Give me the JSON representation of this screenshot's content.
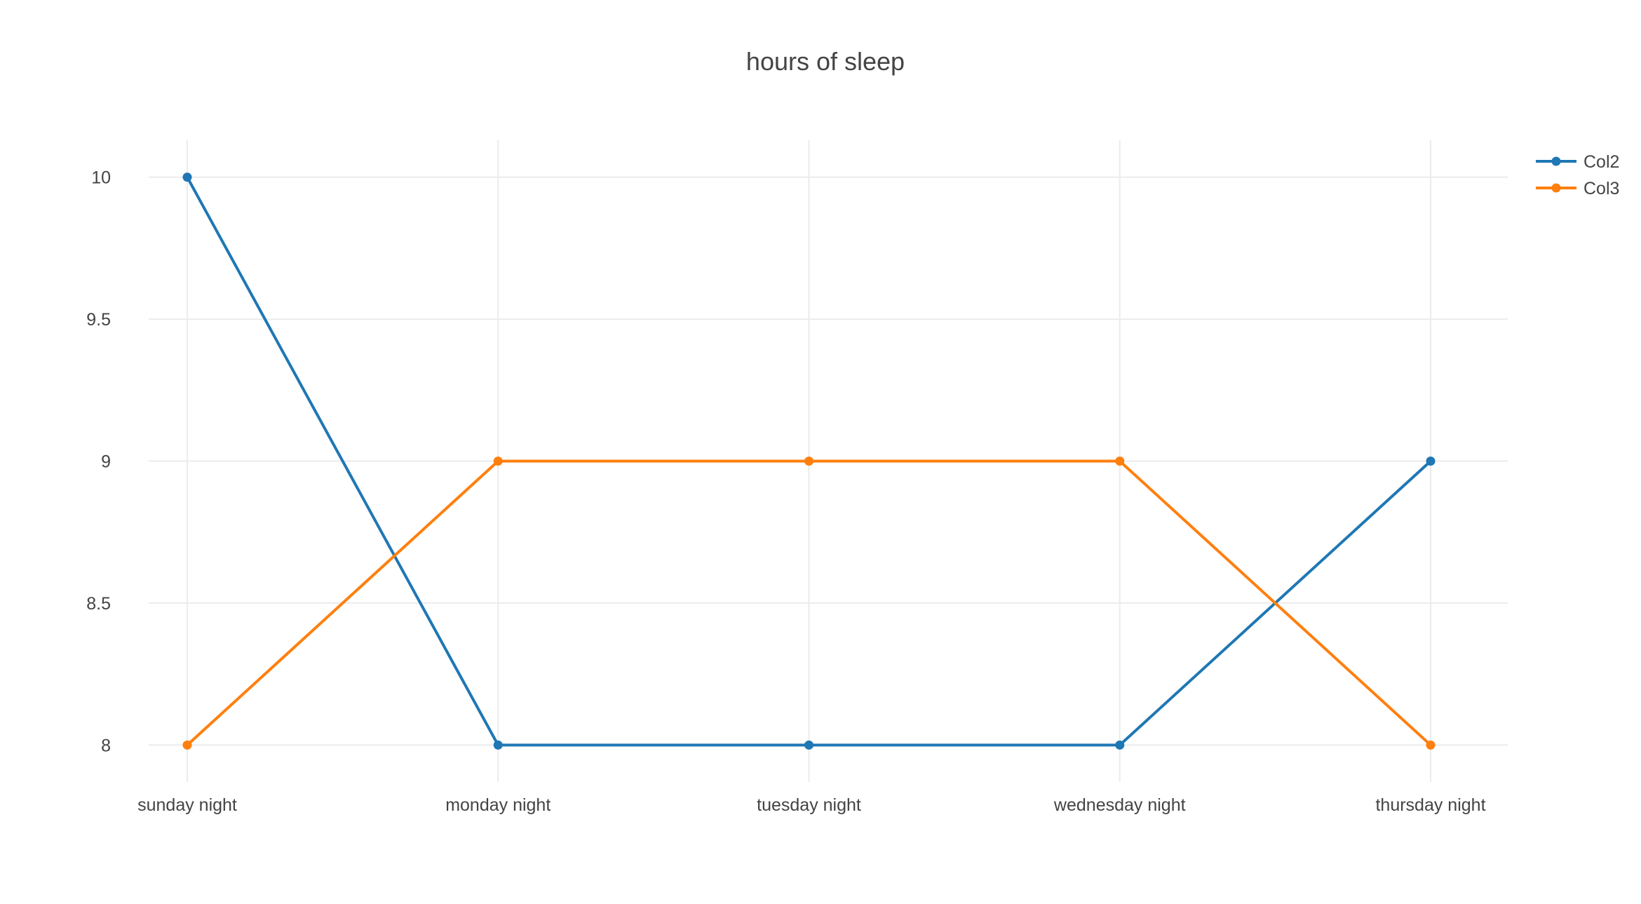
{
  "chart_data": {
    "type": "line",
    "title": "hours of sleep",
    "xlabel": "",
    "ylabel": "",
    "categories": [
      "sunday night",
      "monday night",
      "tuesday night",
      "wednesday night",
      "thursday night"
    ],
    "series": [
      {
        "name": "Col2",
        "color": "#1f77b4",
        "values": [
          10,
          8,
          8,
          8,
          9
        ]
      },
      {
        "name": "Col3",
        "color": "#ff7f0e",
        "values": [
          8,
          9,
          9,
          9,
          8
        ]
      }
    ],
    "ylim": [
      7.87,
      10.13
    ],
    "yticks": [
      8,
      8.5,
      9,
      9.5,
      10
    ],
    "ytick_labels": [
      "8",
      "8.5",
      "9",
      "9.5",
      "10"
    ],
    "grid": true,
    "legend_position": "top-right",
    "markers": true
  }
}
